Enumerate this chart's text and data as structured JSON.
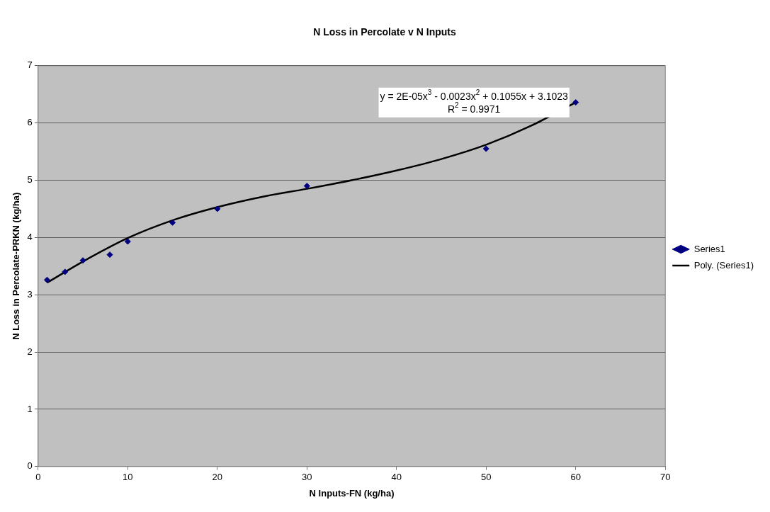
{
  "chart_data": {
    "type": "scatter",
    "title": "N Loss in Percolate v N Inputs",
    "xlabel": "N Inputs-FN (kg/ha)",
    "ylabel": "N Loss in Percolate-PRKN (kg/ha)",
    "x": [
      1,
      3,
      5,
      8,
      10,
      15,
      20,
      30,
      50,
      60
    ],
    "series": [
      {
        "name": "Series1",
        "type": "scatter",
        "color": "#000080",
        "marker": "diamond",
        "values": [
          3.26,
          3.4,
          3.6,
          3.7,
          3.93,
          4.26,
          4.5,
          4.9,
          5.55,
          6.36
        ]
      },
      {
        "name": "Poly. (Series1)",
        "type": "line",
        "color": "#000000",
        "line_style": "solid",
        "marker": "none",
        "x": [
          1,
          5,
          10,
          15,
          20,
          25,
          30,
          35,
          40,
          45,
          50,
          55,
          60
        ],
        "values": [
          3.21,
          3.58,
          3.99,
          4.3,
          4.53,
          4.71,
          4.85,
          5.0,
          5.17,
          5.37,
          5.62,
          5.95,
          6.36
        ]
      }
    ],
    "xlim": [
      0,
      70
    ],
    "xticks": [
      0,
      10,
      20,
      30,
      40,
      50,
      60,
      70
    ],
    "ylim": [
      0,
      7
    ],
    "yticks": [
      0,
      1,
      2,
      3,
      4,
      5,
      6,
      7
    ],
    "grid": "y",
    "legend": "right",
    "annotations": [
      "y = 2E-05x$^{3}$ - 0.0023x$^{2}$ + 0.1055x + 3.1023",
      "R$^{2}$ = 0.9971"
    ]
  }
}
